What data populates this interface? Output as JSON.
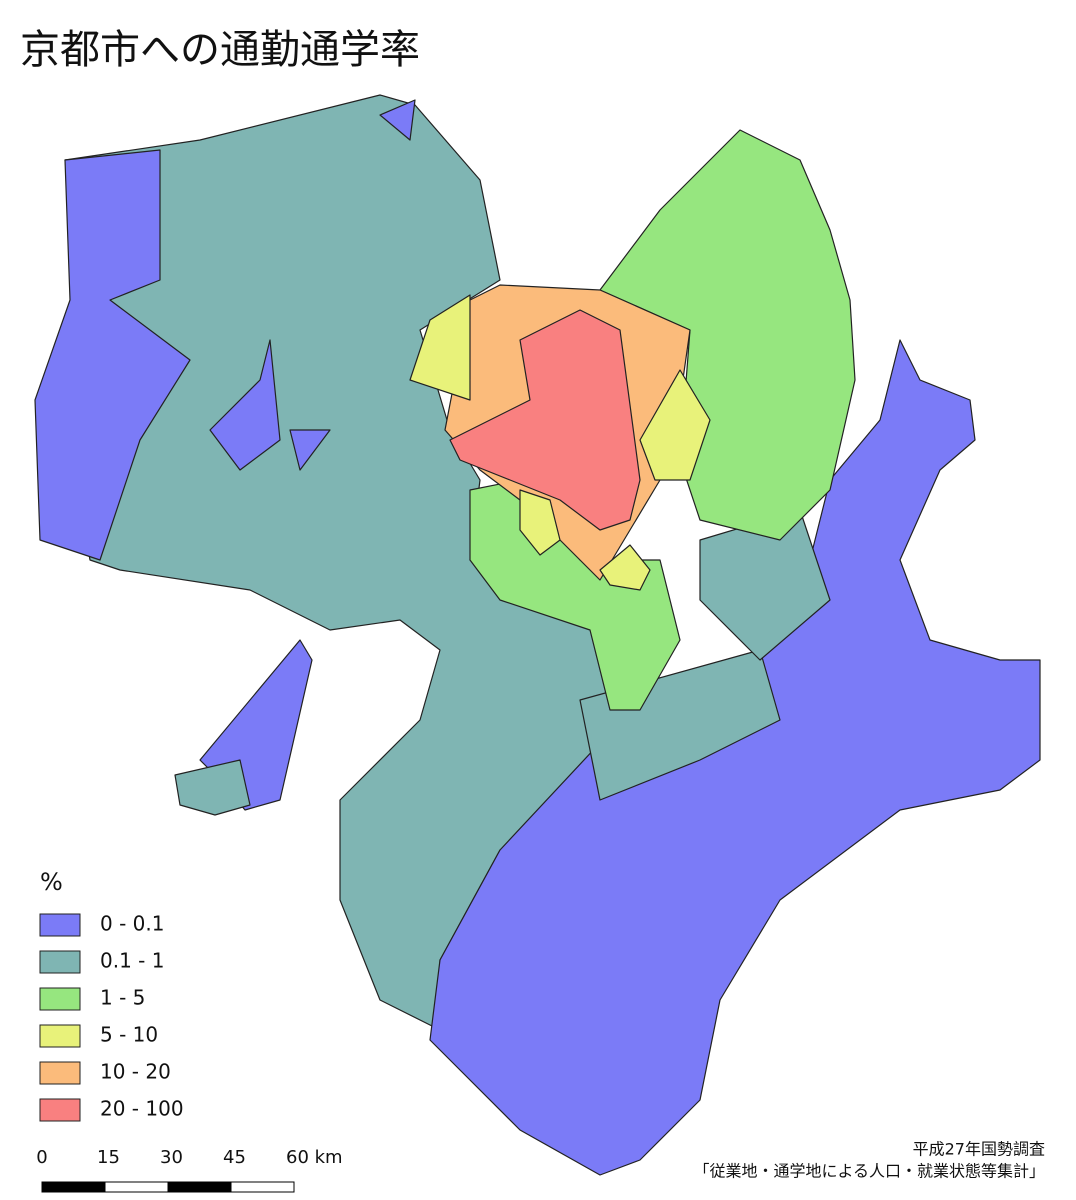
{
  "title": "京都市への通勤通学率",
  "legend": {
    "title": "%",
    "items": [
      {
        "label": "0 - 0.1",
        "color": "#7b7bf7"
      },
      {
        "label": "0.1 - 1",
        "color": "#7fb5b3"
      },
      {
        "label": "1 - 5",
        "color": "#96e67f"
      },
      {
        "label": "5 - 10",
        "color": "#e8f27a"
      },
      {
        "label": "10 - 20",
        "color": "#fbbb7b"
      },
      {
        "label": "20 - 100",
        "color": "#f98080"
      }
    ]
  },
  "scale_bar": {
    "ticks": [
      "0",
      "15",
      "30",
      "45",
      "60 km"
    ]
  },
  "source": [
    "平成27年国勢調査",
    "「従業地・通学地による人口・就業状態等集計」"
  ]
}
